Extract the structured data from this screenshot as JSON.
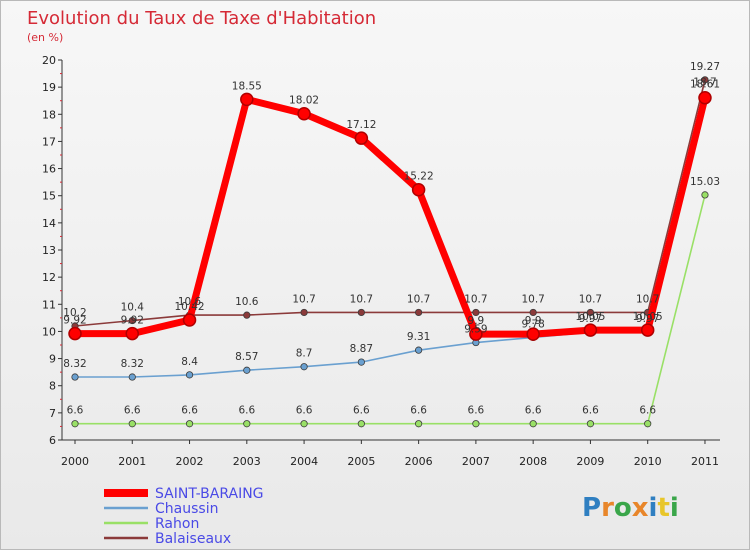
{
  "chart_data": {
    "type": "line",
    "title": "Evolution du Taux de Taxe d'Habitation",
    "subtitle": "(en %)",
    "categories": [
      "2000",
      "2001",
      "2002",
      "2003",
      "2004",
      "2005",
      "2006",
      "2007",
      "2008",
      "2009",
      "2010",
      "2011"
    ],
    "ylim": [
      6,
      20
    ],
    "yticks": [
      "6",
      "7",
      "8",
      "9",
      "10",
      "11",
      "12",
      "13",
      "14",
      "15",
      "16",
      "17",
      "18",
      "19",
      "20"
    ],
    "grid": false,
    "legend_position": "bottom-left",
    "series": [
      {
        "name": "SAINT-BARAING",
        "color": "#ff0000",
        "values": [
          9.92,
          9.92,
          10.42,
          18.55,
          18.02,
          17.12,
          15.22,
          9.9,
          9.9,
          10.05,
          10.05,
          18.61
        ],
        "labels": [
          "9.92",
          "9.92",
          "10.42",
          "18.55",
          "18.02",
          "17.12",
          "15.22",
          "9.9",
          "9.9",
          "10.05",
          "10.05",
          "18.61"
        ]
      },
      {
        "name": "Chaussin",
        "color": "#6aa0d0",
        "values": [
          8.32,
          8.32,
          8.4,
          8.57,
          8.7,
          8.87,
          9.31,
          9.59,
          9.78,
          9.97,
          9.97,
          18.7
        ],
        "labels": [
          "8.32",
          "8.32",
          "8.4",
          "8.57",
          "8.7",
          "8.87",
          "9.31",
          "9.59",
          "9.78",
          "9.97",
          "9.97",
          "18.7"
        ]
      },
      {
        "name": "Rahon",
        "color": "#99e066",
        "values": [
          6.6,
          6.6,
          6.6,
          6.6,
          6.6,
          6.6,
          6.6,
          6.6,
          6.6,
          6.6,
          6.6,
          15.03
        ],
        "labels": [
          "6.6",
          "6.6",
          "6.6",
          "6.6",
          "6.6",
          "6.6",
          "6.6",
          "6.6",
          "6.6",
          "6.6",
          "6.6",
          "15.03"
        ]
      },
      {
        "name": "Balaiseaux",
        "color": "#8b3a3a",
        "values": [
          10.2,
          10.4,
          10.6,
          10.6,
          10.7,
          10.7,
          10.7,
          10.7,
          10.7,
          10.7,
          10.7,
          19.27
        ],
        "labels": [
          "10.2",
          "10.4",
          "10.6",
          "10.6",
          "10.7",
          "10.7",
          "10.7",
          "10.7",
          "10.7",
          "10.7",
          "10.7",
          "19.27"
        ]
      }
    ]
  },
  "brand": {
    "letters": [
      "P",
      "r",
      "o",
      "x",
      "i",
      "t",
      "i"
    ],
    "colors": [
      "#2f7fc1",
      "#e8862a",
      "#3aa64a",
      "#e8862a",
      "#2f7fc1",
      "#e8c62a",
      "#3aa64a"
    ]
  }
}
